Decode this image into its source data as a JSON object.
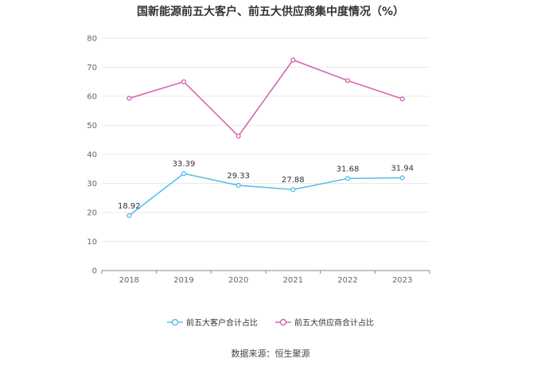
{
  "title": "国新能源前五大客户、前五大供应商集中度情况（%）",
  "source": "数据来源：恒生聚源",
  "colors": {
    "customer": "#5bbfe8",
    "supplier": "#d766b3",
    "grid": "#e9e9e9",
    "axis": "#888888"
  },
  "chart_data": {
    "type": "line",
    "categories": [
      "2018",
      "2019",
      "2020",
      "2021",
      "2022",
      "2023"
    ],
    "ylim": [
      0,
      80
    ],
    "yticks": [
      0,
      10,
      20,
      30,
      40,
      50,
      60,
      70,
      80
    ],
    "grid": true,
    "legend_position": "bottom",
    "series": [
      {
        "name": "前五大客户合计占比",
        "values": [
          18.92,
          33.39,
          29.33,
          27.88,
          31.68,
          31.94
        ],
        "labels": [
          "18.92",
          "33.39",
          "29.33",
          "27.88",
          "31.68",
          "31.94"
        ],
        "show_labels": true
      },
      {
        "name": "前五大供应商合计占比",
        "values": [
          59.3,
          65.0,
          46.3,
          72.5,
          65.4,
          59.1
        ],
        "show_labels": false
      }
    ]
  }
}
